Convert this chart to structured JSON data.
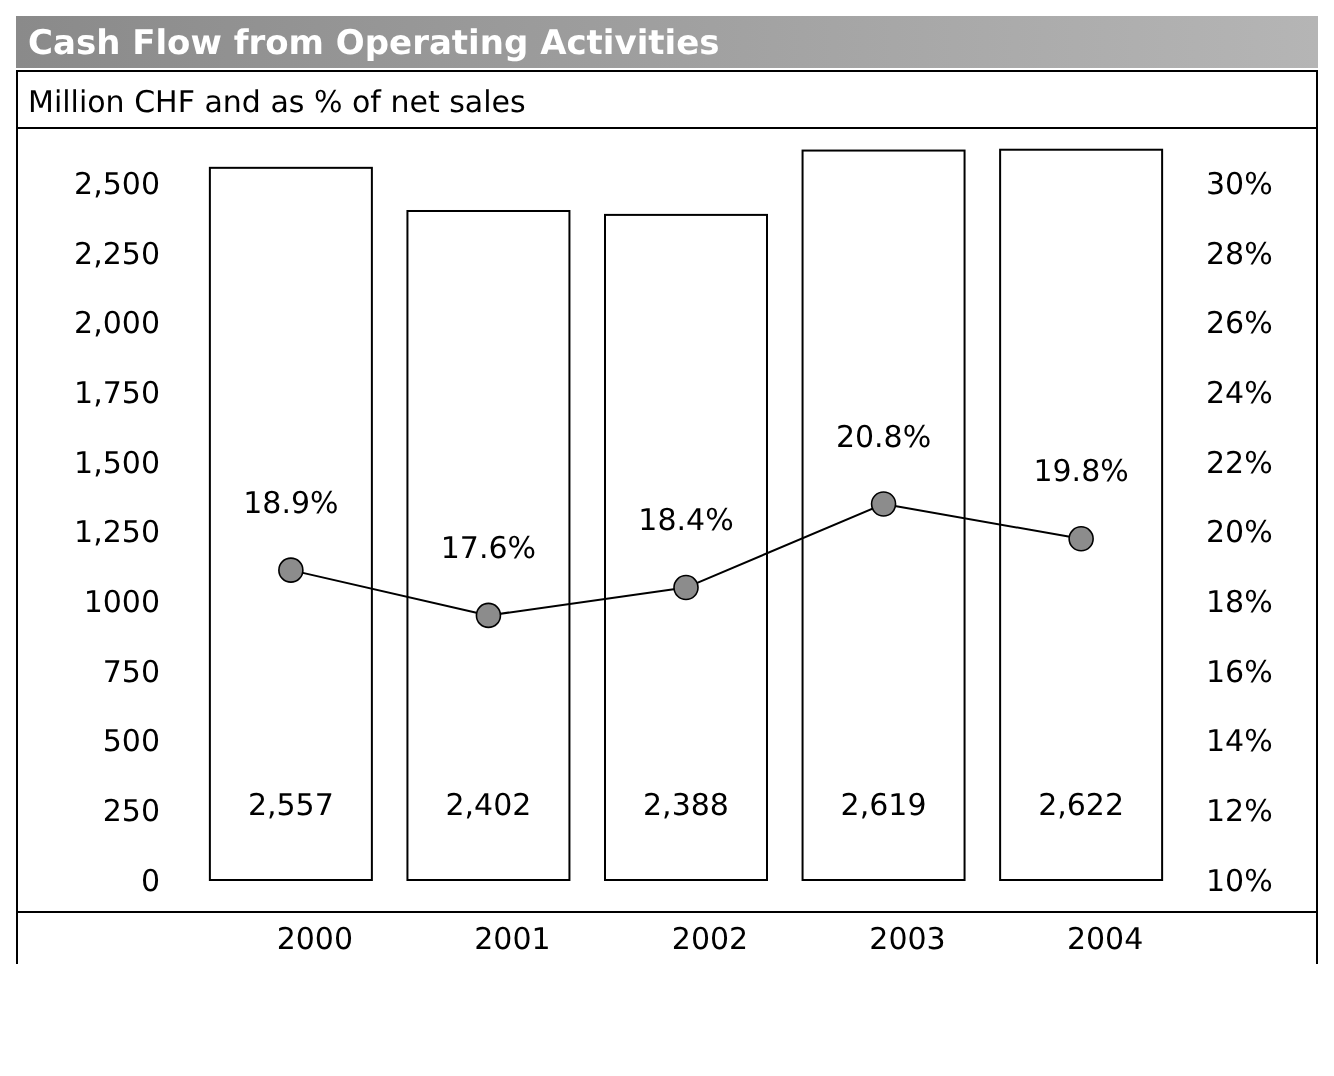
{
  "chart_data": {
    "type": "bar",
    "title": "Cash Flow from Operating Activities",
    "subtitle": "Million CHF and as % of net sales",
    "categories": [
      "2000",
      "2001",
      "2002",
      "2003",
      "2004"
    ],
    "series": [
      {
        "color": "#ffffff",
        "values": [
          2557,
          2402,
          2388,
          2619,
          2622
        ],
        "value_labels": [
          "2,557",
          "2,402",
          "2,388",
          "2,619",
          "2,622"
        ]
      },
      {
        "type": "line",
        "axis": "y2",
        "color": "#8c8c8c",
        "values": [
          18.9,
          17.6,
          18.4,
          20.8,
          19.8
        ],
        "value_labels": [
          "18.9%",
          "17.6%",
          "18.4%",
          "20.8%",
          "19.8%"
        ]
      }
    ],
    "ylim": [
      0,
      2700
    ],
    "yticks": [
      0,
      250,
      500,
      750,
      1000,
      {
        "value": 1250,
        "label": "1,250"
      },
      {
        "value": 1500,
        "label": "1,500"
      },
      {
        "value": 1750,
        "label": "1,750"
      },
      {
        "value": 2000,
        "label": "2,000"
      },
      {
        "value": 2250,
        "label": "2,250"
      },
      {
        "value": 2500,
        "label": "2,500"
      }
    ],
    "y2lim": [
      10,
      31.6
    ],
    "y2ticks": [
      {
        "value": 10,
        "label": "10%"
      },
      {
        "value": 12,
        "label": "12%"
      },
      {
        "value": 14,
        "label": "14%"
      },
      {
        "value": 16,
        "label": "16%"
      },
      {
        "value": 18,
        "label": "18%"
      },
      {
        "value": 20,
        "label": "20%"
      },
      {
        "value": 22,
        "label": "22%"
      },
      {
        "value": 24,
        "label": "24%"
      },
      {
        "value": 26,
        "label": "26%"
      },
      {
        "value": 28,
        "label": "28%"
      },
      {
        "value": 30,
        "label": "30%"
      }
    ],
    "marker": "circle",
    "line_style": "solid",
    "grid": false
  }
}
